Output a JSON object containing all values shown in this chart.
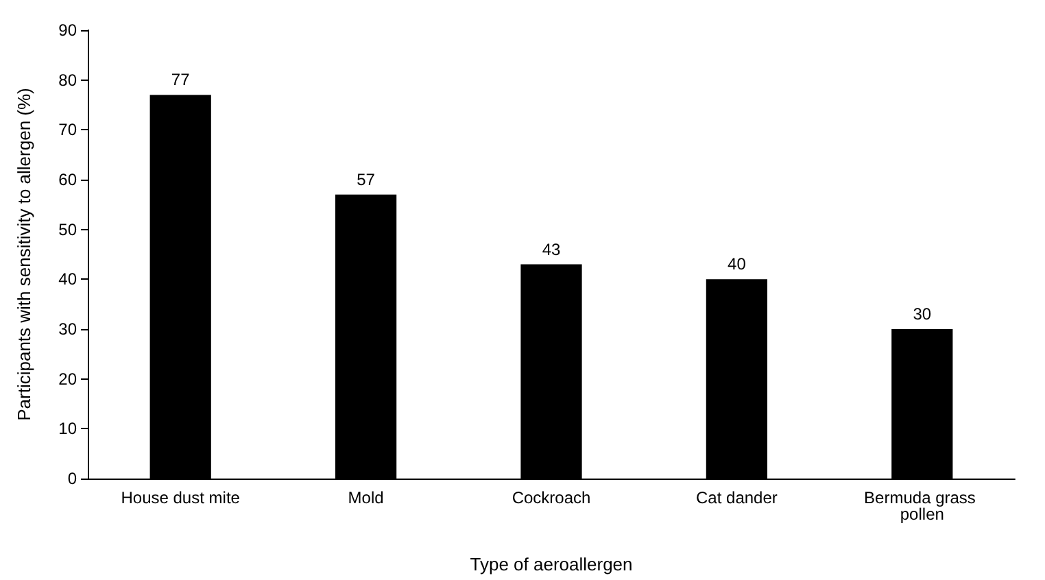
{
  "chart_data": {
    "type": "bar",
    "xlabel": "Type of aeroallergen",
    "ylabel": "Participants with sensitivity to allergen (%)",
    "categories": [
      "House dust mite",
      "Mold",
      "Cockroach",
      "Cat dander",
      "Bermuda grass pollen"
    ],
    "values": [
      77,
      57,
      43,
      40,
      30
    ],
    "color": "#000000",
    "ylim": [
      0,
      90
    ],
    "yticks": [
      0,
      10,
      20,
      30,
      40,
      50,
      60,
      70,
      80,
      90
    ],
    "data_labels": true
  }
}
